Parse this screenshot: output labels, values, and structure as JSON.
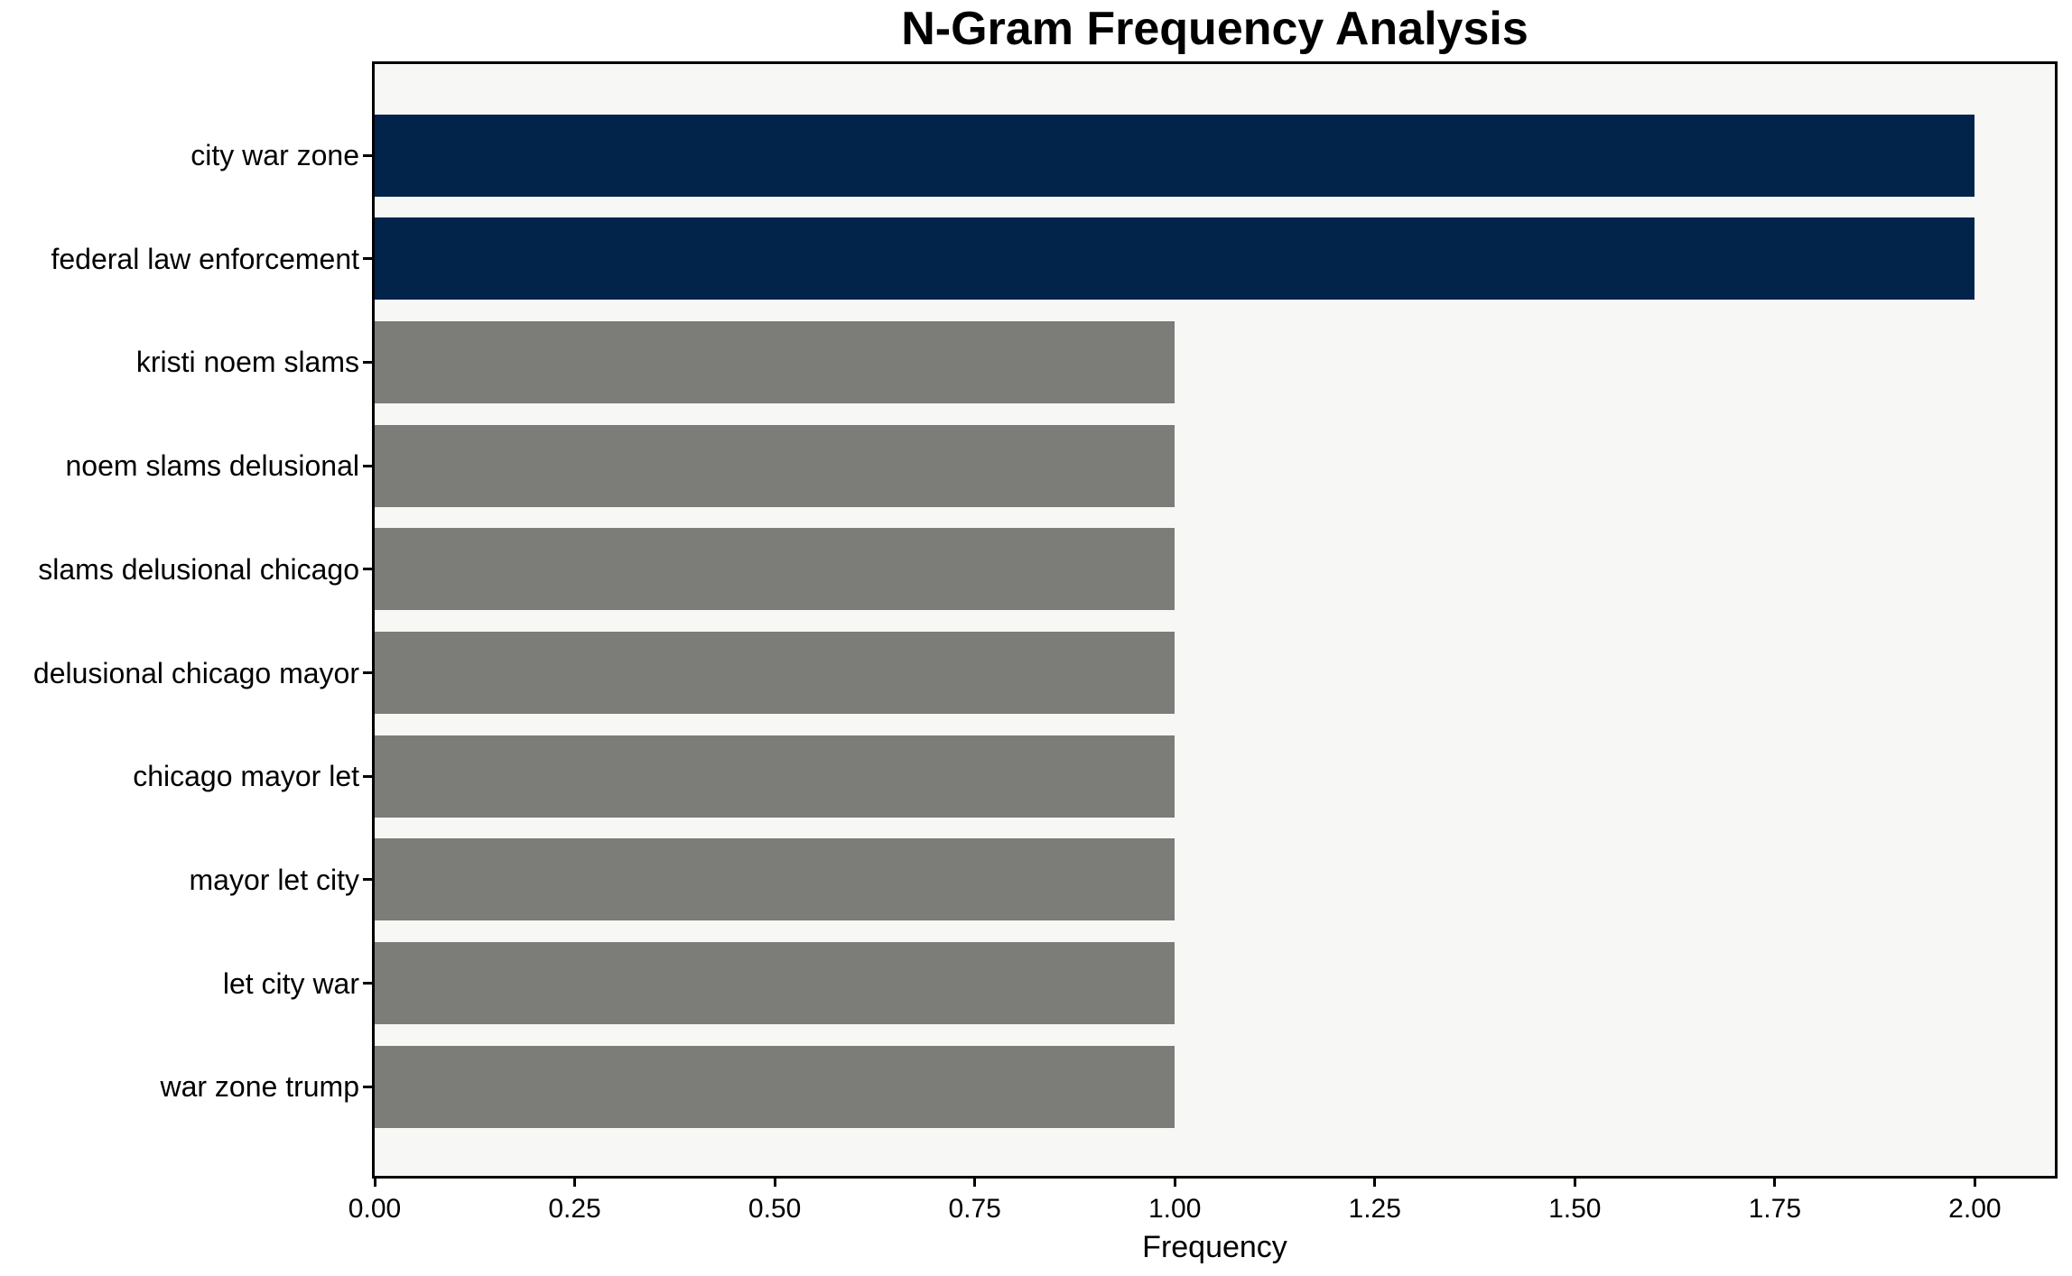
{
  "chart_data": {
    "type": "bar",
    "orientation": "horizontal",
    "title": "N-Gram Frequency Analysis",
    "xlabel": "Frequency",
    "ylabel": "",
    "categories": [
      "city war zone",
      "federal law enforcement",
      "kristi noem slams",
      "noem slams delusional",
      "slams delusional chicago",
      "delusional chicago mayor",
      "chicago mayor let",
      "mayor let city",
      "let city war",
      "war zone trump"
    ],
    "values": [
      2,
      2,
      1,
      1,
      1,
      1,
      1,
      1,
      1,
      1
    ],
    "bar_colors": [
      "#02234a",
      "#02234a",
      "#7c7c78",
      "#7c7c78",
      "#7c7c78",
      "#7c7c78",
      "#7c7c78",
      "#7c7c78",
      "#7c7c78",
      "#7c7c78"
    ],
    "xlim": [
      0,
      2.1
    ],
    "x_tick_values": [
      0,
      0.25,
      0.5,
      0.75,
      1.0,
      1.25,
      1.5,
      1.75,
      2.0
    ],
    "x_tick_labels": [
      "0.00",
      "0.25",
      "0.50",
      "0.75",
      "1.00",
      "1.25",
      "1.50",
      "1.75",
      "2.00"
    ],
    "grid": false,
    "legend": "none",
    "colors": {
      "highlight_bar": "#02234a",
      "base_bar": "#7c7c78",
      "plot_background": "#f7f7f6",
      "page_background": "#ffffff",
      "frame": "#000000",
      "text": "#000000"
    }
  }
}
